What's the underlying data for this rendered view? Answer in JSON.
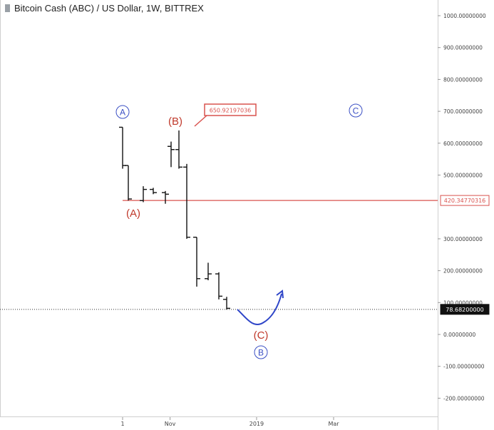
{
  "header": {
    "title": "Bitcoin Cash (ABC) / US Dollar, 1W, BITTREX"
  },
  "colors": {
    "red": "#d9534f",
    "blue": "#3a4fc4",
    "bar": "#111111",
    "axis": "#cccccc"
  },
  "chart_data": {
    "type": "ohlc",
    "title": "Bitcoin Cash (ABC) / US Dollar, 1W, BITTREX",
    "ylim": [
      -230,
      1000
    ],
    "y_ticks": [
      {
        "value": 1000,
        "label": "1000.00000000"
      },
      {
        "value": 900,
        "label": "900.00000000"
      },
      {
        "value": 800,
        "label": "800.00000000"
      },
      {
        "value": 700,
        "label": "700.00000000"
      },
      {
        "value": 600,
        "label": "600.00000000"
      },
      {
        "value": 500,
        "label": "500.00000000"
      },
      {
        "value": 300,
        "label": "300.00000000"
      },
      {
        "value": 200,
        "label": "200.00000000"
      },
      {
        "value": 100,
        "label": "100.00000000"
      },
      {
        "value": 0,
        "label": "0.00000000"
      },
      {
        "value": -100,
        "label": "-100.00000000"
      },
      {
        "value": -200,
        "label": "-200.00000000"
      }
    ],
    "x_ticks": [
      {
        "index": 0,
        "label": "1"
      },
      {
        "index": 4.5,
        "label": "Nov"
      },
      {
        "index": 12.7,
        "label": "2019"
      },
      {
        "index": 20,
        "label": "Mar"
      }
    ],
    "bars": [
      {
        "open": 650,
        "high": 650,
        "low": 520,
        "close": 530
      },
      {
        "open": 530,
        "high": 530,
        "low": 420,
        "close": 425
      },
      {
        "open": 420,
        "high": 465,
        "low": 415,
        "close": 455
      },
      {
        "open": 455,
        "high": 460,
        "low": 440,
        "close": 445
      },
      {
        "open": 445,
        "high": 450,
        "low": 410,
        "close": 440
      },
      {
        "open": 590,
        "high": 605,
        "low": 525,
        "close": 580
      },
      {
        "open": 580,
        "high": 640,
        "low": 520,
        "close": 525
      },
      {
        "open": 525,
        "high": 535,
        "low": 300,
        "close": 305
      },
      {
        "open": 305,
        "high": 305,
        "low": 150,
        "close": 175
      },
      {
        "open": 175,
        "high": 225,
        "low": 170,
        "close": 190
      },
      {
        "open": 190,
        "high": 195,
        "low": 110,
        "close": 120
      },
      {
        "open": 110,
        "high": 118,
        "low": 78,
        "close": 82
      }
    ],
    "horizontal_lines": [
      {
        "value": 420.3477,
        "label": "420.34770316",
        "style": "solid",
        "color": "red"
      },
      {
        "value": 78.682,
        "label": "78.68200000",
        "style": "dotted",
        "color": "black"
      }
    ],
    "callout": {
      "label": "650.92197036",
      "value": 650.92
    },
    "wave_labels": [
      {
        "text": "A",
        "circled": true,
        "color": "blue"
      },
      {
        "text": "(B)",
        "circled": false,
        "color": "red"
      },
      {
        "text": "C",
        "circled": true,
        "color": "blue"
      },
      {
        "text": "(A)",
        "circled": false,
        "color": "red"
      },
      {
        "text": "(C)",
        "circled": false,
        "color": "red"
      },
      {
        "text": "B",
        "circled": true,
        "color": "blue"
      }
    ],
    "projection": "curved arrow up from (C)"
  }
}
